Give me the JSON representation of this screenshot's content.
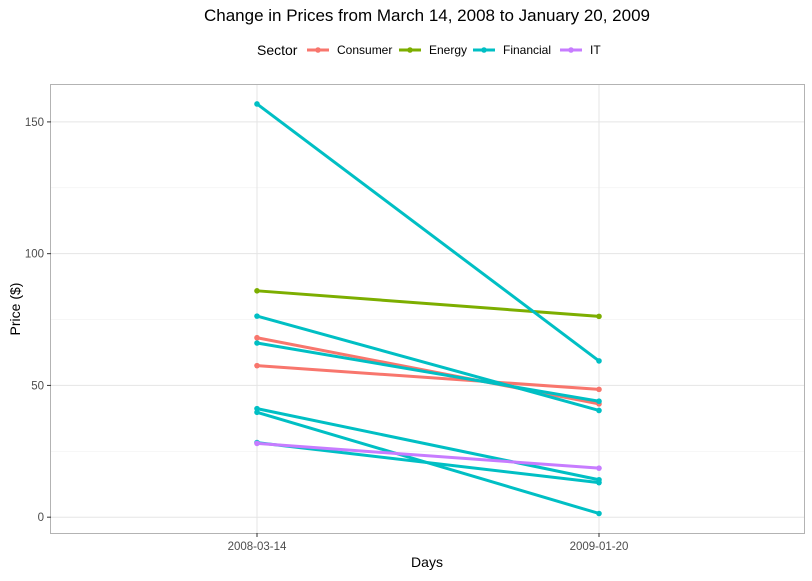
{
  "chart_data": {
    "type": "line",
    "title": "Change in Prices from March 14, 2008 to January 20, 2009",
    "xlabel": "Days",
    "ylabel": "Price ($)",
    "x_categories": [
      "2008-03-14",
      "2009-01-20"
    ],
    "ylim": [
      -6,
      164
    ],
    "y_ticks": [
      0,
      50,
      100,
      150
    ],
    "grid": true,
    "legend": {
      "title": "Sector",
      "position": "top",
      "entries": [
        {
          "name": "Consumer",
          "color": "#F8766D"
        },
        {
          "name": "Energy",
          "color": "#7CAE00"
        },
        {
          "name": "Financial",
          "color": "#00BFC4"
        },
        {
          "name": "IT",
          "color": "#C77CFF"
        }
      ]
    },
    "series": [
      {
        "sector": "Consumer",
        "values": [
          68.1,
          43.0
        ]
      },
      {
        "sector": "Consumer",
        "values": [
          57.5,
          48.5
        ]
      },
      {
        "sector": "Energy",
        "values": [
          85.9,
          76.2
        ]
      },
      {
        "sector": "Financial",
        "values": [
          156.8,
          59.3
        ]
      },
      {
        "sector": "Financial",
        "values": [
          76.3,
          40.5
        ]
      },
      {
        "sector": "Financial",
        "values": [
          66.1,
          44.0
        ]
      },
      {
        "sector": "Financial",
        "values": [
          41.2,
          14.2
        ]
      },
      {
        "sector": "Financial",
        "values": [
          39.8,
          1.4
        ]
      },
      {
        "sector": "Financial",
        "values": [
          28.3,
          13.1
        ]
      },
      {
        "sector": "IT",
        "values": [
          28.0,
          18.6
        ]
      }
    ]
  }
}
